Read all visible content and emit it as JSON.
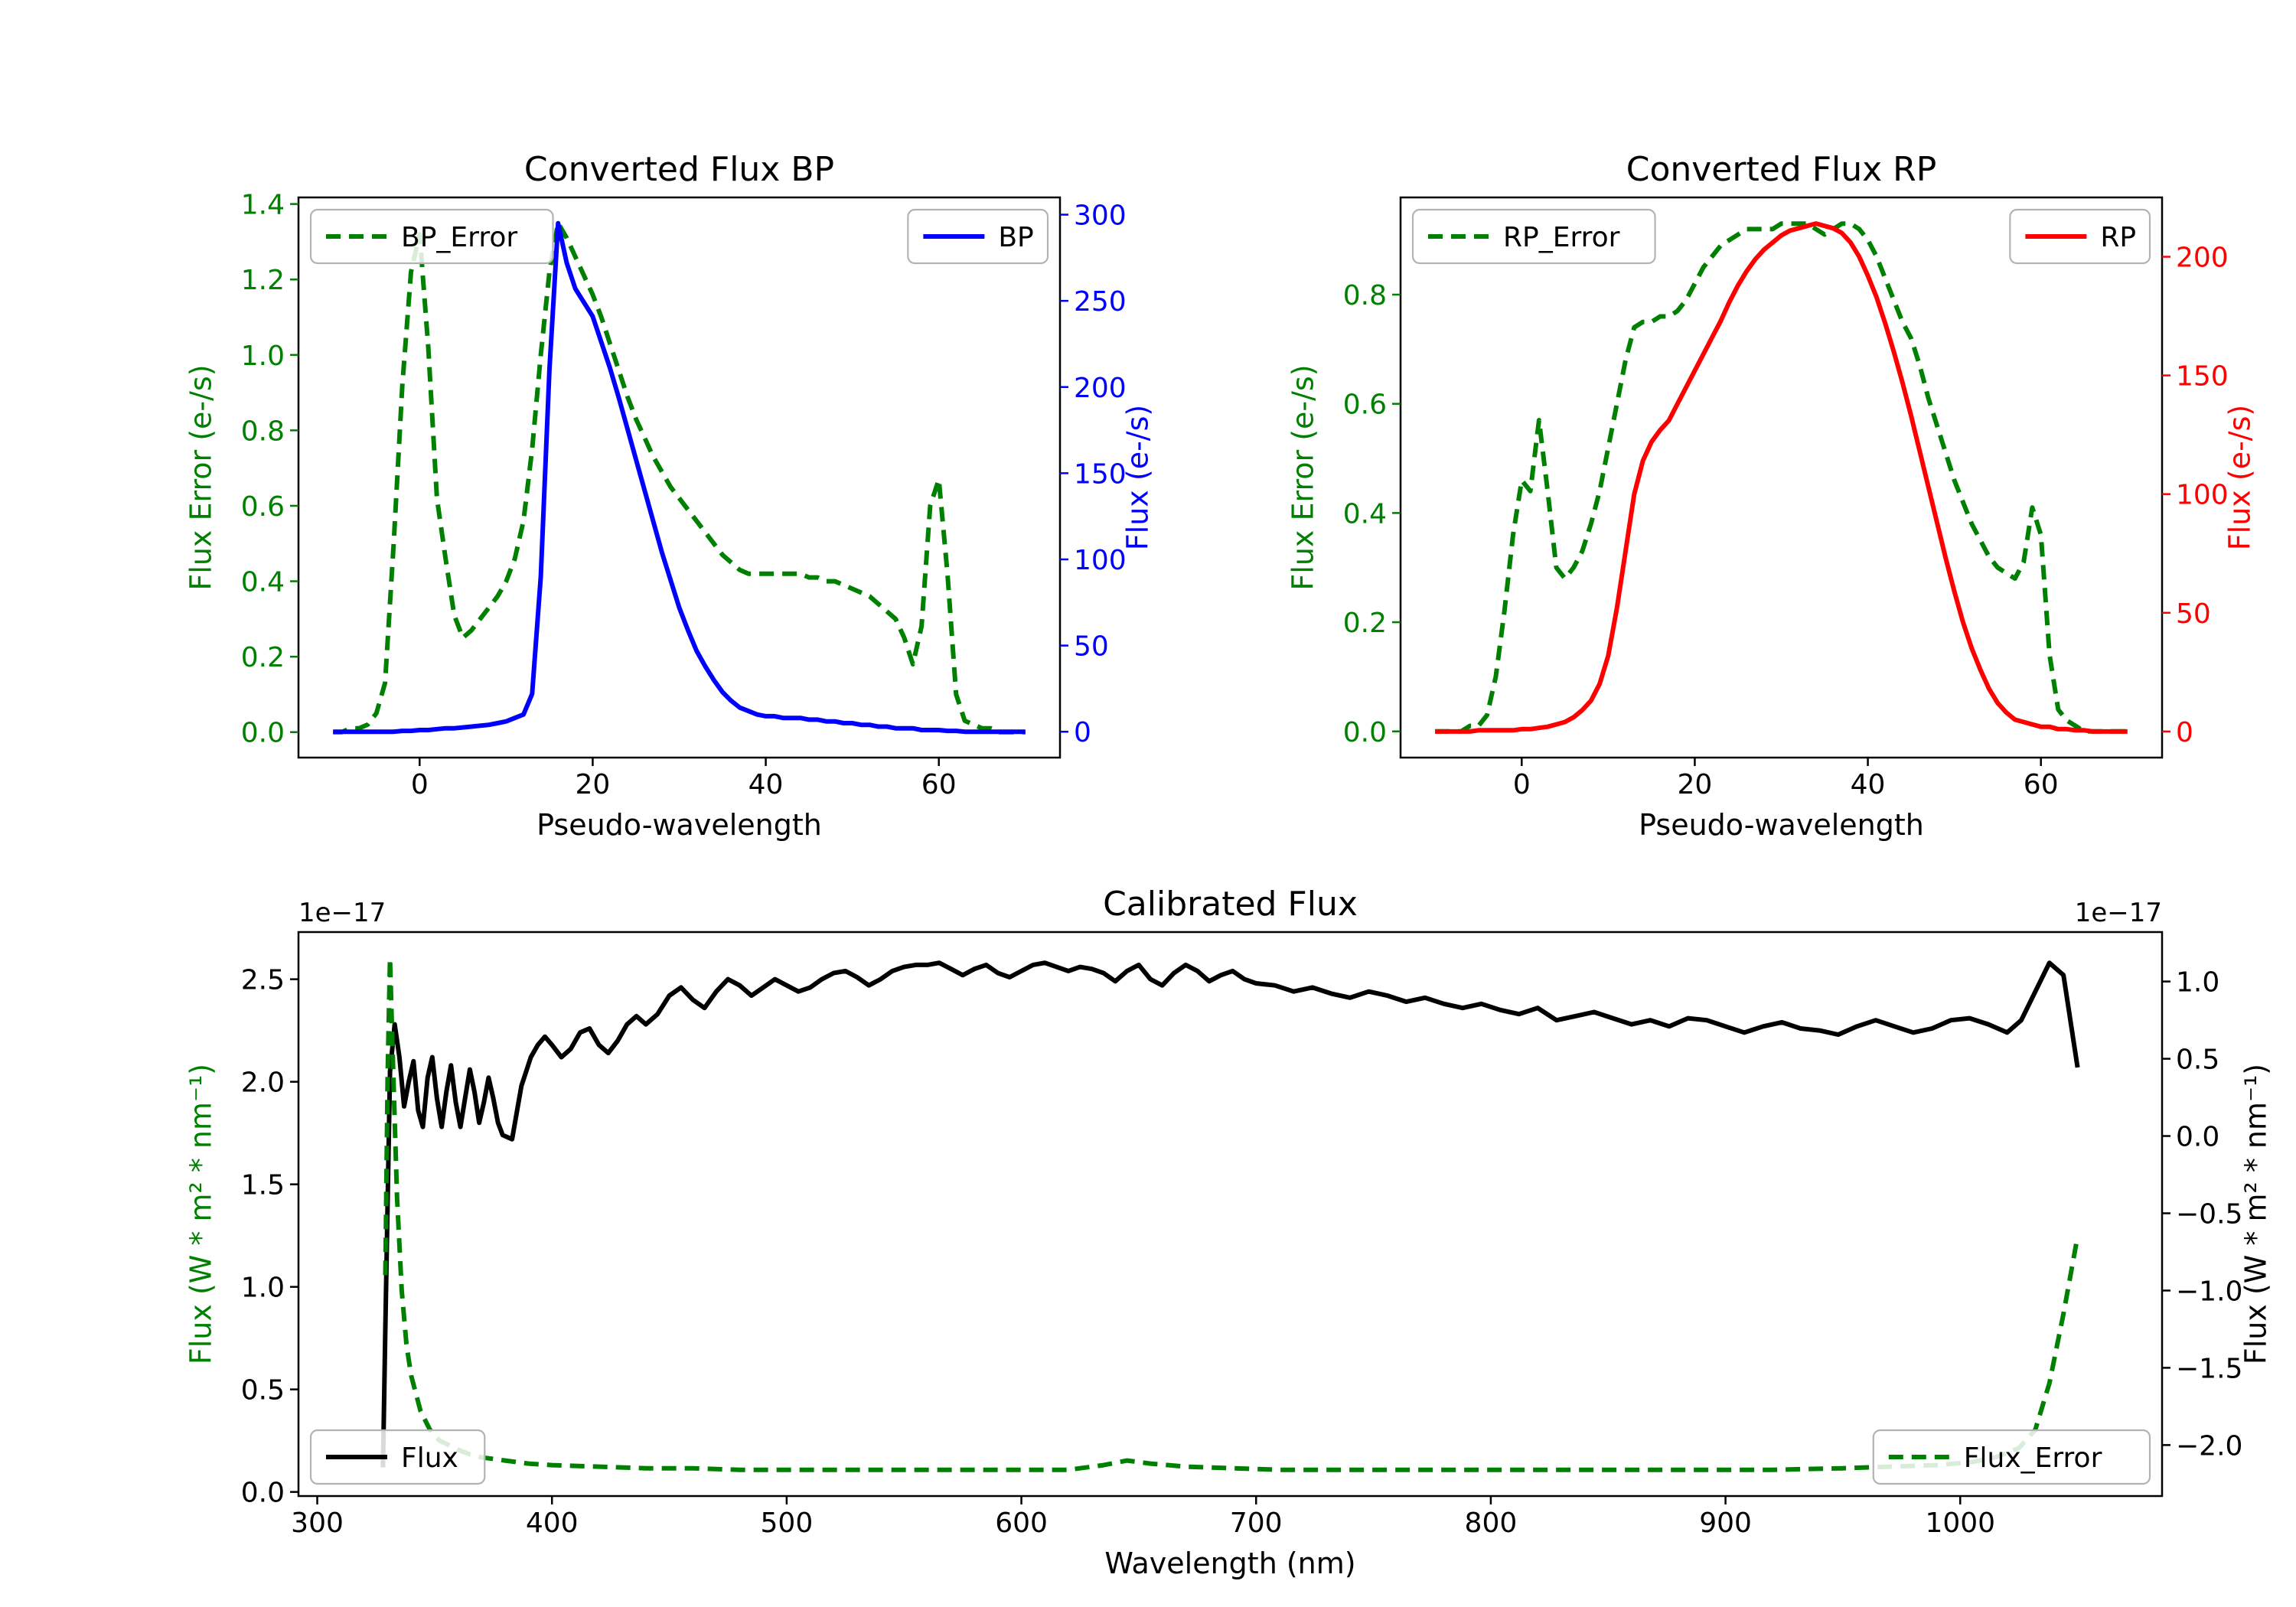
{
  "figure": {
    "background": "#ffffff"
  },
  "chart_data": [
    {
      "id": "bp",
      "type": "line",
      "title": "Converted Flux BP",
      "xlabel": "Pseudo-wavelength",
      "xlim": [
        -14,
        74
      ],
      "xticks": [
        0,
        20,
        40,
        60
      ],
      "x": [
        -10,
        -9,
        -8,
        -7,
        -6,
        -5,
        -4,
        -3,
        -2,
        -1,
        0,
        1,
        2,
        3,
        4,
        5,
        6,
        7,
        8,
        9,
        10,
        11,
        12,
        13,
        14,
        15,
        16,
        17,
        18,
        19,
        20,
        21,
        22,
        23,
        24,
        25,
        26,
        27,
        28,
        29,
        30,
        31,
        32,
        33,
        34,
        35,
        36,
        37,
        38,
        39,
        40,
        41,
        42,
        43,
        44,
        45,
        46,
        47,
        48,
        49,
        50,
        51,
        52,
        53,
        54,
        55,
        56,
        57,
        58,
        59,
        60,
        61,
        62,
        63,
        64,
        65,
        66,
        67,
        68,
        69,
        70
      ],
      "axes": {
        "left": {
          "label": "Flux Error (e-/s)",
          "label_color": "#008000",
          "tick_color": "#008000",
          "lim": [
            -0.0675,
            1.4175
          ],
          "ticks": [
            0.0,
            0.2,
            0.4,
            0.6,
            0.8,
            1.0,
            1.2,
            1.4
          ],
          "decimals": 1
        },
        "right": {
          "label": "Flux (e-/s)",
          "label_color": "#0000ff",
          "tick_color": "#0000ff",
          "lim": [
            -15,
            310
          ],
          "ticks": [
            0,
            50,
            100,
            150,
            200,
            250,
            300
          ],
          "decimals": 0
        }
      },
      "series": [
        {
          "name": "BP_Error",
          "axis": "left",
          "color": "#008000",
          "dash": true,
          "y": [
            0,
            0,
            0.01,
            0.01,
            0.02,
            0.05,
            0.13,
            0.5,
            0.92,
            1.22,
            1.32,
            1.02,
            0.62,
            0.46,
            0.31,
            0.25,
            0.27,
            0.3,
            0.33,
            0.36,
            0.4,
            0.46,
            0.56,
            0.75,
            1.0,
            1.22,
            1.35,
            1.31,
            1.26,
            1.21,
            1.16,
            1.1,
            1.03,
            0.96,
            0.89,
            0.83,
            0.78,
            0.73,
            0.69,
            0.65,
            0.62,
            0.59,
            0.56,
            0.53,
            0.5,
            0.47,
            0.45,
            0.43,
            0.42,
            0.42,
            0.42,
            0.42,
            0.42,
            0.42,
            0.42,
            0.41,
            0.41,
            0.4,
            0.4,
            0.39,
            0.38,
            0.37,
            0.36,
            0.34,
            0.32,
            0.3,
            0.25,
            0.18,
            0.28,
            0.6,
            0.67,
            0.42,
            0.1,
            0.03,
            0.02,
            0.01,
            0.01,
            0,
            0,
            0,
            0
          ]
        },
        {
          "name": "BP",
          "axis": "right",
          "color": "#0000ff",
          "dash": false,
          "y": [
            0,
            0,
            0,
            0,
            0,
            0,
            0,
            0,
            0.5,
            0.5,
            1,
            1,
            1.5,
            2,
            2,
            2.5,
            3,
            3.5,
            4,
            5,
            6,
            8,
            10,
            22,
            90,
            210,
            295,
            272,
            257,
            249,
            241,
            226,
            211,
            194,
            176,
            158,
            140,
            122,
            104,
            88,
            72,
            59,
            47,
            38,
            30,
            23,
            18,
            14,
            12,
            10,
            9,
            9,
            8,
            8,
            8,
            7,
            7,
            6,
            6,
            5,
            5,
            4,
            4,
            3,
            3,
            2,
            2,
            2,
            1,
            1,
            1,
            0.5,
            0.5,
            0,
            0,
            0,
            0,
            0,
            0,
            0,
            0
          ]
        }
      ],
      "legends": [
        {
          "label": "BP_Error",
          "series": 0,
          "loc": "upper-left"
        },
        {
          "label": "BP",
          "series": 1,
          "loc": "upper-right"
        }
      ]
    },
    {
      "id": "rp",
      "type": "line",
      "title": "Converted Flux RP",
      "xlabel": "Pseudo-wavelength",
      "xlim": [
        -14,
        74
      ],
      "xticks": [
        0,
        20,
        40,
        60
      ],
      "x": [
        -10,
        -9,
        -8,
        -7,
        -6,
        -5,
        -4,
        -3,
        -2,
        -1,
        0,
        1,
        2,
        3,
        4,
        5,
        6,
        7,
        8,
        9,
        10,
        11,
        12,
        13,
        14,
        15,
        16,
        17,
        18,
        19,
        20,
        21,
        22,
        23,
        24,
        25,
        26,
        27,
        28,
        29,
        30,
        31,
        32,
        33,
        34,
        35,
        36,
        37,
        38,
        39,
        40,
        41,
        42,
        43,
        44,
        45,
        46,
        47,
        48,
        49,
        50,
        51,
        52,
        53,
        54,
        55,
        56,
        57,
        58,
        59,
        60,
        61,
        62,
        63,
        64,
        65,
        66,
        67,
        68,
        69,
        70
      ],
      "axes": {
        "left": {
          "label": "Flux Error (e-/s)",
          "label_color": "#008000",
          "tick_color": "#008000",
          "lim": [
            -0.048,
            0.978
          ],
          "ticks": [
            0.0,
            0.2,
            0.4,
            0.6,
            0.8
          ],
          "decimals": 1
        },
        "right": {
          "label": "Flux (e-/s)",
          "label_color": "#ff0000",
          "tick_color": "#ff0000",
          "lim": [
            -11,
            225
          ],
          "ticks": [
            0,
            50,
            100,
            150,
            200
          ],
          "decimals": 0
        }
      },
      "series": [
        {
          "name": "RP_Error",
          "axis": "left",
          "color": "#008000",
          "dash": true,
          "y": [
            0,
            0,
            0,
            0,
            0.01,
            0.01,
            0.03,
            0.1,
            0.22,
            0.36,
            0.46,
            0.44,
            0.57,
            0.44,
            0.3,
            0.28,
            0.3,
            0.33,
            0.38,
            0.44,
            0.52,
            0.6,
            0.68,
            0.74,
            0.75,
            0.75,
            0.76,
            0.76,
            0.77,
            0.79,
            0.82,
            0.85,
            0.87,
            0.89,
            0.9,
            0.91,
            0.92,
            0.92,
            0.92,
            0.92,
            0.93,
            0.93,
            0.93,
            0.93,
            0.92,
            0.91,
            0.92,
            0.93,
            0.93,
            0.92,
            0.9,
            0.87,
            0.83,
            0.79,
            0.75,
            0.72,
            0.67,
            0.61,
            0.56,
            0.51,
            0.46,
            0.42,
            0.38,
            0.35,
            0.32,
            0.3,
            0.29,
            0.28,
            0.31,
            0.41,
            0.36,
            0.14,
            0.04,
            0.02,
            0.01,
            0,
            0,
            0,
            0,
            0,
            0
          ]
        },
        {
          "name": "RP",
          "axis": "right",
          "color": "#ff0000",
          "dash": false,
          "y": [
            0,
            0,
            0,
            0,
            0,
            0.5,
            0.5,
            0.5,
            0.5,
            0.5,
            1,
            1,
            1.5,
            2,
            3,
            4,
            6,
            9,
            13,
            20,
            32,
            52,
            76,
            100,
            114,
            122,
            127,
            131,
            138,
            145,
            152,
            159,
            166,
            173,
            181,
            188,
            194,
            199,
            203,
            206,
            209,
            211,
            212,
            213,
            214,
            213,
            212,
            210,
            206,
            200,
            192,
            183,
            172,
            160,
            147,
            133,
            118,
            103,
            88,
            73,
            59,
            46,
            35,
            26,
            18,
            12,
            8,
            5,
            4,
            3,
            2,
            2,
            1,
            1,
            0.5,
            0.5,
            0,
            0,
            0,
            0,
            0
          ]
        }
      ],
      "legends": [
        {
          "label": "RP_Error",
          "series": 0,
          "loc": "upper-left"
        },
        {
          "label": "RP",
          "series": 1,
          "loc": "upper-right"
        }
      ]
    },
    {
      "id": "calibrated",
      "type": "line",
      "title": "Calibrated Flux",
      "xlabel": "Wavelength (nm)",
      "xlim": [
        292,
        1086
      ],
      "xticks": [
        300,
        400,
        500,
        600,
        700,
        800,
        900,
        1000
      ],
      "axes": {
        "left": {
          "label": "Flux (W * m² * nm⁻¹)",
          "label_color": "#008000",
          "tick_color": "#000000",
          "lim": [
            -0.02,
            2.73
          ],
          "ticks": [
            0.0,
            0.5,
            1.0,
            1.5,
            2.0,
            2.5
          ],
          "decimals": 1,
          "offset_text": "1e−17"
        },
        "right": {
          "label": "Flux (W * m² * nm⁻¹)",
          "label_color": "#000000",
          "tick_color": "#000000",
          "lim": [
            -2.33,
            1.32
          ],
          "ticks": [
            1.0,
            0.5,
            0.0,
            -0.5,
            -1.0,
            -1.5,
            -2.0
          ],
          "decimals": 1,
          "offset_text": "1e−17"
        }
      },
      "series": [
        {
          "name": "Flux",
          "axis": "left",
          "color": "#000000",
          "dash": false,
          "x": [
            328,
            329,
            331,
            333,
            335,
            337,
            339,
            341,
            343,
            345,
            347,
            349,
            351,
            353,
            355,
            357,
            359,
            361,
            363,
            365,
            367,
            369,
            371,
            373,
            375,
            377,
            379,
            381,
            383,
            385,
            387,
            389,
            391,
            394,
            397,
            400,
            404,
            408,
            412,
            416,
            420,
            424,
            428,
            432,
            436,
            440,
            445,
            450,
            455,
            460,
            465,
            470,
            475,
            480,
            485,
            490,
            495,
            500,
            505,
            510,
            515,
            520,
            525,
            530,
            535,
            540,
            545,
            550,
            555,
            560,
            565,
            570,
            575,
            580,
            585,
            590,
            595,
            600,
            605,
            610,
            615,
            620,
            625,
            630,
            635,
            640,
            645,
            650,
            655,
            660,
            665,
            670,
            675,
            680,
            685,
            690,
            695,
            700,
            708,
            716,
            724,
            732,
            740,
            748,
            756,
            764,
            772,
            780,
            788,
            796,
            804,
            812,
            820,
            828,
            836,
            844,
            852,
            860,
            868,
            876,
            884,
            892,
            900,
            908,
            916,
            924,
            932,
            940,
            948,
            956,
            964,
            972,
            980,
            988,
            996,
            1004,
            1012,
            1020,
            1026,
            1032,
            1038,
            1044,
            1050
          ],
          "y": [
            0.12,
            0.8,
            2.05,
            2.28,
            2.12,
            1.88,
            2.0,
            2.1,
            1.86,
            1.78,
            2.02,
            2.12,
            1.92,
            1.78,
            1.95,
            2.08,
            1.9,
            1.78,
            1.92,
            2.06,
            1.95,
            1.8,
            1.9,
            2.02,
            1.92,
            1.8,
            1.74,
            1.73,
            1.72,
            1.85,
            1.98,
            2.05,
            2.12,
            2.18,
            2.22,
            2.18,
            2.12,
            2.16,
            2.24,
            2.26,
            2.18,
            2.14,
            2.2,
            2.28,
            2.32,
            2.28,
            2.33,
            2.42,
            2.46,
            2.4,
            2.36,
            2.44,
            2.5,
            2.47,
            2.42,
            2.46,
            2.5,
            2.47,
            2.44,
            2.46,
            2.5,
            2.53,
            2.54,
            2.51,
            2.47,
            2.5,
            2.54,
            2.56,
            2.57,
            2.57,
            2.58,
            2.55,
            2.52,
            2.55,
            2.57,
            2.53,
            2.51,
            2.54,
            2.57,
            2.58,
            2.56,
            2.54,
            2.56,
            2.55,
            2.53,
            2.49,
            2.54,
            2.57,
            2.5,
            2.47,
            2.53,
            2.57,
            2.54,
            2.49,
            2.52,
            2.54,
            2.5,
            2.48,
            2.47,
            2.44,
            2.46,
            2.43,
            2.41,
            2.44,
            2.42,
            2.39,
            2.41,
            2.38,
            2.36,
            2.38,
            2.35,
            2.33,
            2.36,
            2.3,
            2.32,
            2.34,
            2.31,
            2.28,
            2.3,
            2.27,
            2.31,
            2.3,
            2.27,
            2.24,
            2.27,
            2.29,
            2.26,
            2.25,
            2.23,
            2.27,
            2.3,
            2.27,
            2.24,
            2.26,
            2.3,
            2.31,
            2.28,
            2.24,
            2.3,
            2.44,
            2.58,
            2.52,
            2.07
          ]
        },
        {
          "name": "Flux_Error",
          "axis": "right",
          "color": "#008000",
          "dash": true,
          "x": [
            329,
            330,
            331,
            332,
            334,
            336,
            338,
            340,
            344,
            348,
            352,
            356,
            360,
            365,
            370,
            375,
            380,
            390,
            400,
            420,
            440,
            460,
            480,
            500,
            520,
            540,
            560,
            580,
            600,
            620,
            635,
            645,
            655,
            670,
            690,
            710,
            740,
            770,
            800,
            830,
            860,
            890,
            920,
            950,
            970,
            990,
            1005,
            1015,
            1025,
            1032,
            1038,
            1044,
            1050
          ],
          "y": [
            -0.9,
            0.4,
            1.15,
            0.6,
            -0.4,
            -1.0,
            -1.35,
            -1.55,
            -1.78,
            -1.9,
            -1.97,
            -2.0,
            -2.03,
            -2.06,
            -2.08,
            -2.09,
            -2.1,
            -2.12,
            -2.13,
            -2.14,
            -2.15,
            -2.15,
            -2.16,
            -2.16,
            -2.16,
            -2.16,
            -2.16,
            -2.16,
            -2.16,
            -2.16,
            -2.13,
            -2.1,
            -2.12,
            -2.14,
            -2.15,
            -2.16,
            -2.16,
            -2.16,
            -2.16,
            -2.16,
            -2.16,
            -2.16,
            -2.16,
            -2.15,
            -2.14,
            -2.13,
            -2.11,
            -2.08,
            -2.02,
            -1.9,
            -1.6,
            -1.15,
            -0.65
          ]
        }
      ],
      "legends": [
        {
          "label": "Flux",
          "series": 0,
          "loc": "lower-left"
        },
        {
          "label": "Flux_Error",
          "series": 1,
          "loc": "lower-right"
        }
      ]
    }
  ]
}
